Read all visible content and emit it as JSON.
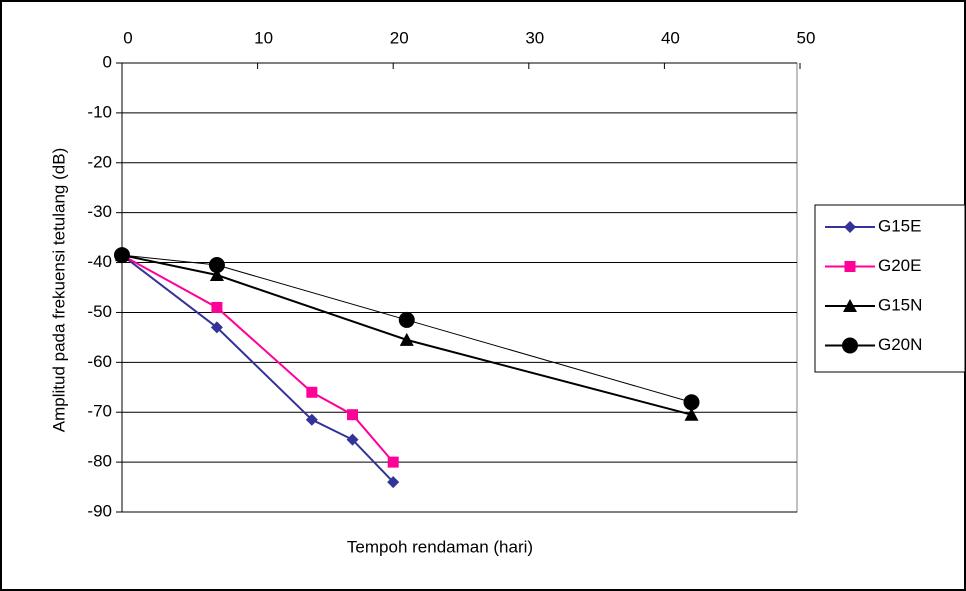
{
  "chart_data": {
    "type": "line",
    "x_label": "Tempoh rendaman (hari)",
    "y_label": "Amplitud pada frekuensi tetulang (dB)",
    "xlim": [
      0,
      50
    ],
    "xticks": [
      0,
      10,
      20,
      30,
      40,
      50
    ],
    "x_axis_position": "top",
    "ylim": [
      -90,
      0
    ],
    "yticks": [
      0,
      -10,
      -20,
      -30,
      -40,
      -50,
      -60,
      -70,
      -80,
      -90
    ],
    "grid": true,
    "legend": "right",
    "series": [
      {
        "name": "G15E",
        "color": "#333399",
        "marker": "diamond",
        "x": [
          0,
          7,
          14,
          17,
          20
        ],
        "values": [
          -38.5,
          -53,
          -71.5,
          -75.5,
          -84
        ]
      },
      {
        "name": "G20E",
        "color": "#ff0099",
        "marker": "square",
        "x": [
          0,
          7,
          14,
          17,
          20
        ],
        "values": [
          -38.5,
          -49,
          -66,
          -70.5,
          -80
        ]
      },
      {
        "name": "G15N",
        "color": "#000000",
        "marker": "triangle",
        "x": [
          0,
          7,
          21,
          42
        ],
        "values": [
          -38.5,
          -42.5,
          -55.5,
          -70.5
        ]
      },
      {
        "name": "G20N",
        "color": "#000000",
        "marker": "circle",
        "x": [
          0,
          7,
          21,
          42
        ],
        "values": [
          -38.5,
          -40.5,
          -51.5,
          -68
        ]
      }
    ]
  }
}
